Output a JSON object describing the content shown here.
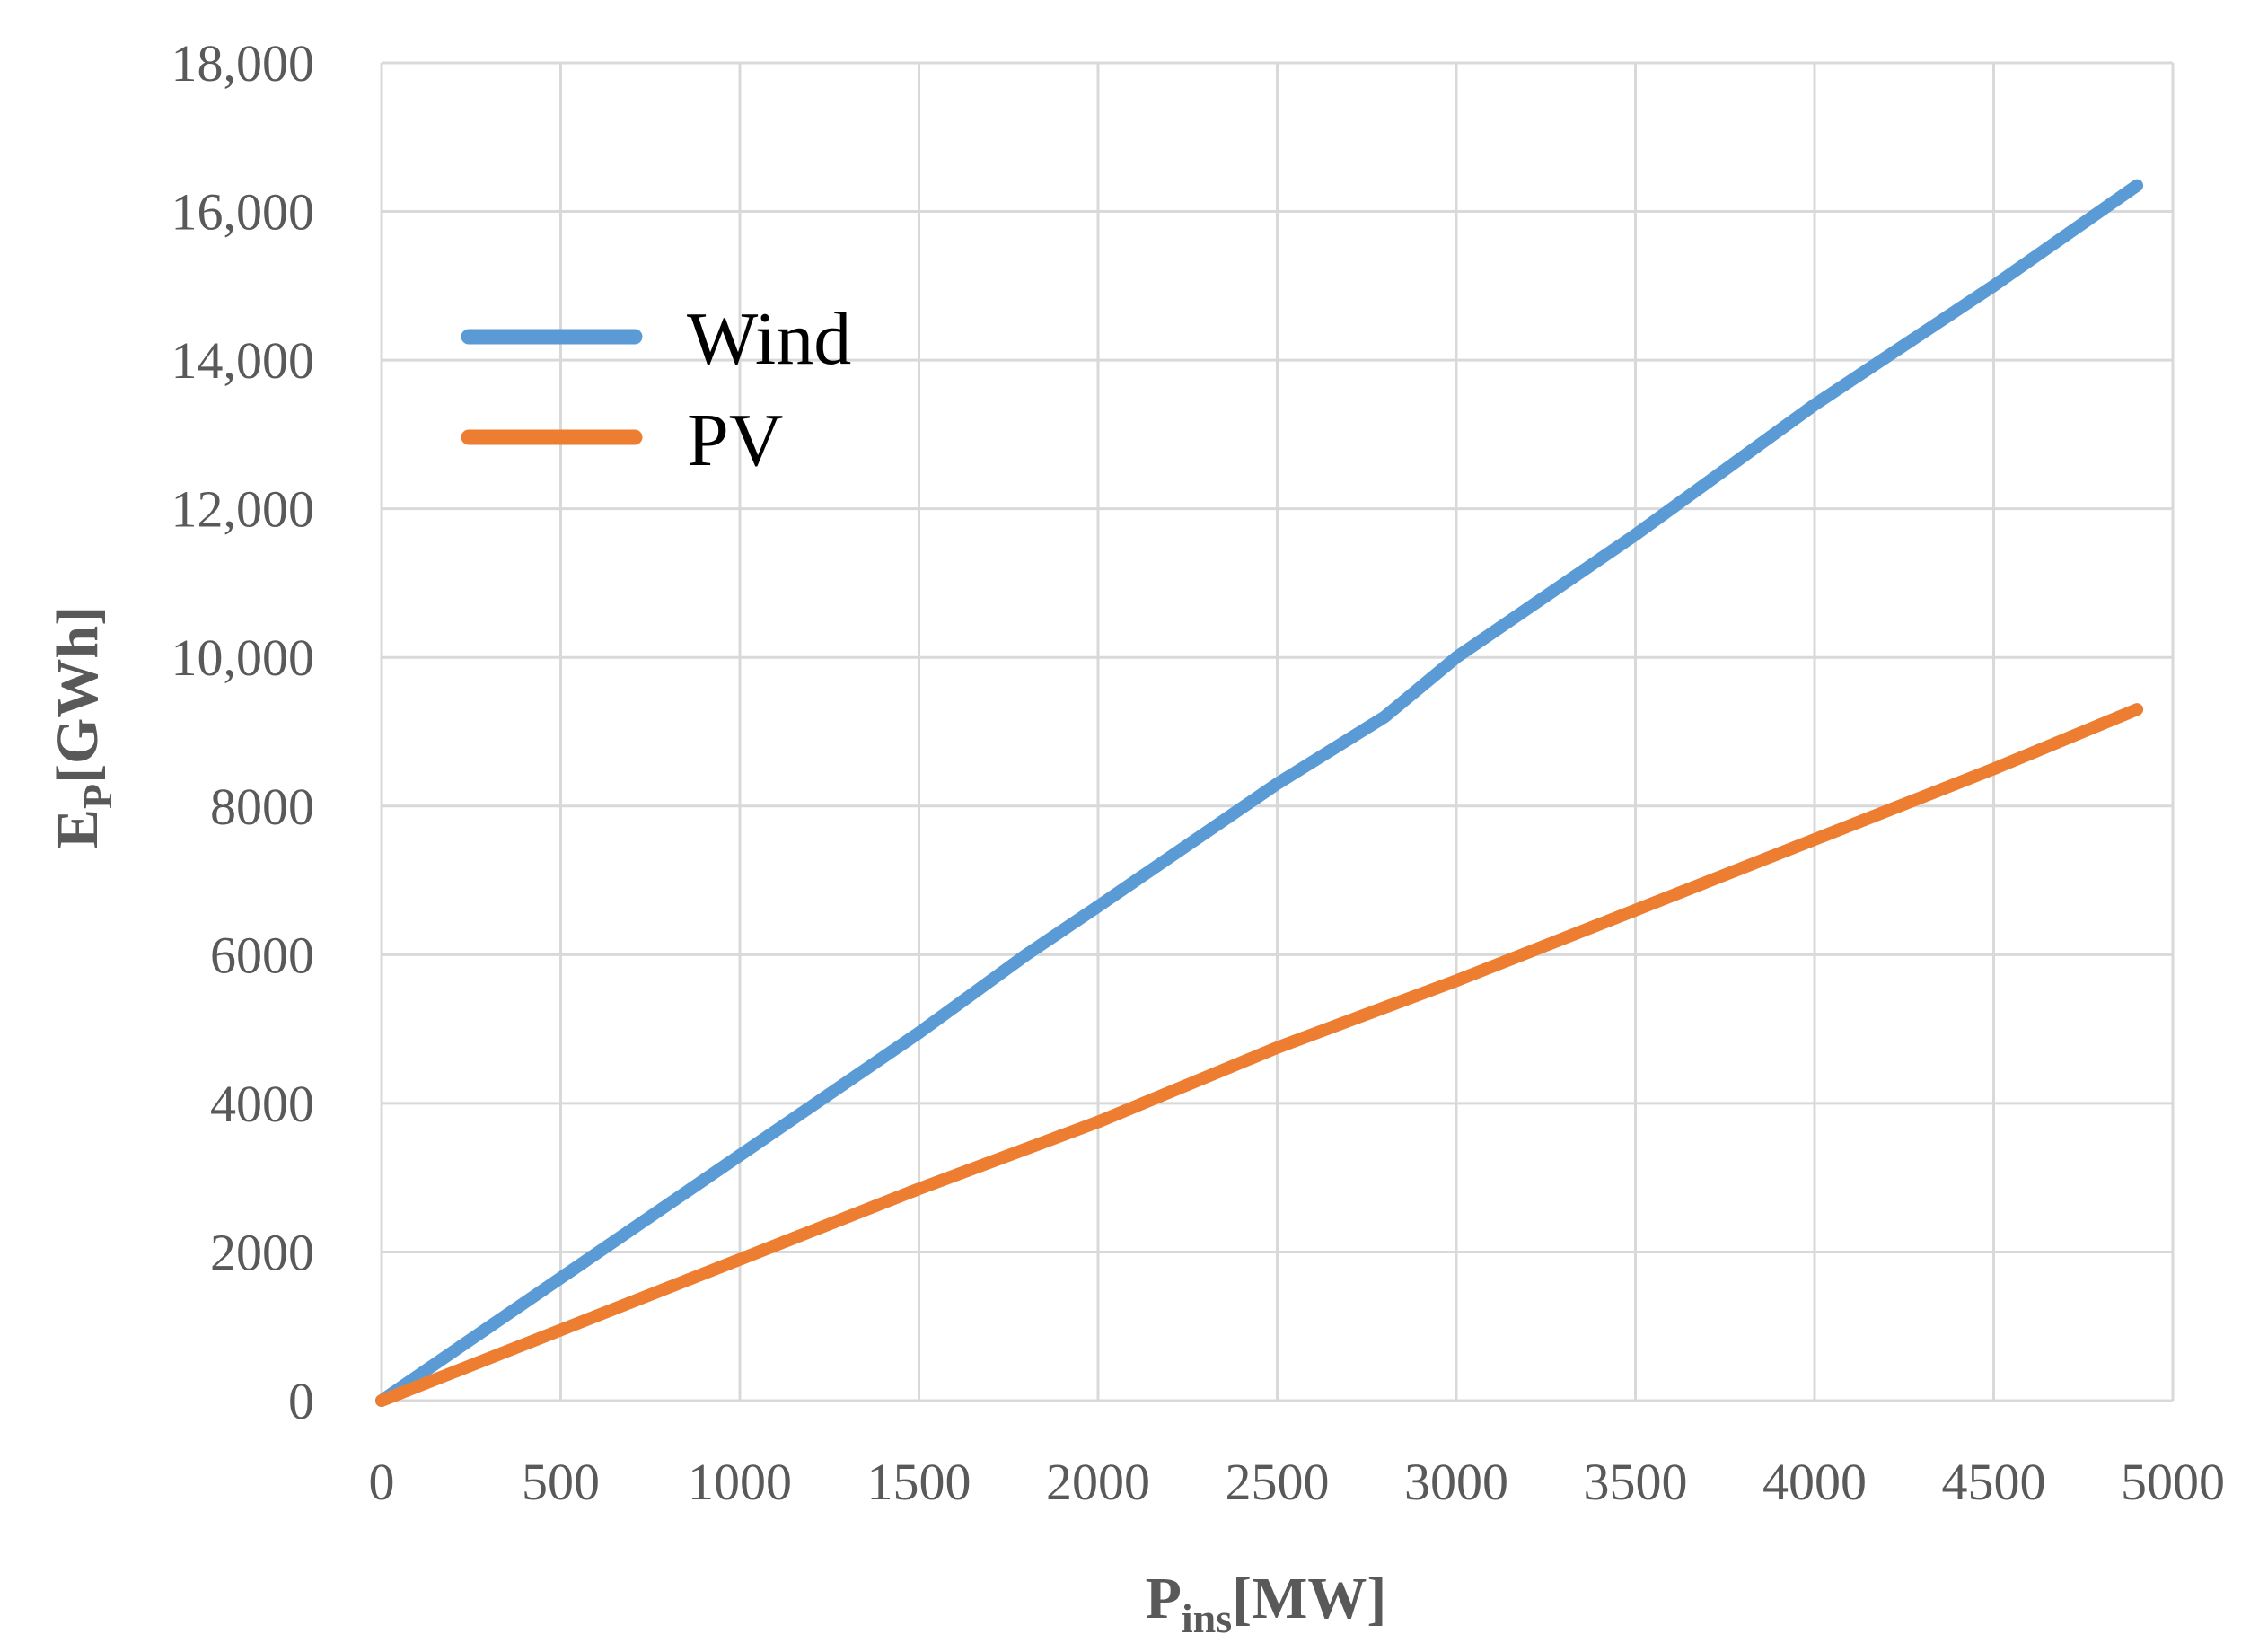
{
  "chart_data": {
    "type": "line",
    "title": "",
    "xlabel": {
      "main": "P",
      "sub": "ins",
      "unit": "[MW]"
    },
    "ylabel": {
      "main": "E",
      "sub": "P",
      "unit": "[GWh]"
    },
    "xlim": [
      0,
      5000
    ],
    "ylim": [
      0,
      18000
    ],
    "x_ticks": [
      0,
      500,
      1000,
      1500,
      2000,
      2500,
      3000,
      3500,
      4000,
      4500,
      5000
    ],
    "x_tick_labels": [
      "0",
      "500",
      "1000",
      "1500",
      "2000",
      "2500",
      "3000",
      "3500",
      "4000",
      "4500",
      "5000"
    ],
    "y_ticks": [
      0,
      2000,
      4000,
      6000,
      8000,
      10000,
      12000,
      14000,
      16000,
      18000
    ],
    "y_tick_labels": [
      "0",
      "2000",
      "4000",
      "6000",
      "8000",
      "10,000",
      "12,000",
      "14,000",
      "16,000",
      "18,000"
    ],
    "grid": true,
    "legend_position": "upper-left",
    "series": [
      {
        "name": "Wind",
        "color": "#5b9bd5",
        "x": [
          0,
          500,
          1000,
          1500,
          1800,
          2000,
          2500,
          2800,
          3000,
          3500,
          3800,
          4000,
          4500,
          4900
        ],
        "y": [
          0,
          1650,
          3300,
          4950,
          6000,
          6650,
          8300,
          9200,
          10000,
          11650,
          12700,
          13400,
          15000,
          16350
        ]
      },
      {
        "name": "PV",
        "color": "#ed7d31",
        "x": [
          0,
          500,
          1000,
          1500,
          2000,
          2500,
          3000,
          3500,
          4000,
          4500,
          4900
        ],
        "y": [
          0,
          950,
          1900,
          2850,
          3750,
          4750,
          5650,
          6600,
          7550,
          8500,
          9300
        ]
      }
    ]
  }
}
